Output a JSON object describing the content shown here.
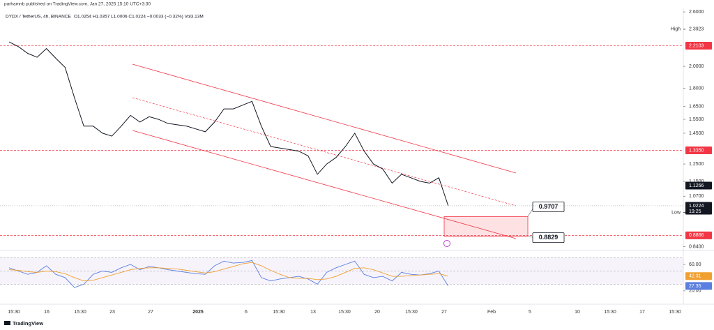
{
  "header": {
    "publisher": "parhamnb published on TradingView.com, Jan 27, 2025 15:10 UTC+3:30",
    "symbol": "DYDX / TetherUS, 4h, BINANCE",
    "ohlc": "O1.0254 H1.0357 L1.0006 C1.0224 −0.0033 (−0.32%) Vol3.13M"
  },
  "chart_data": [
    {
      "type": "line",
      "color": "#131722",
      "log_scale": true,
      "values": [
        2.25,
        2.2,
        2.13,
        2.09,
        2.18,
        2.08,
        1.99,
        1.72,
        1.5,
        1.5,
        1.45,
        1.43,
        1.5,
        1.58,
        1.53,
        1.57,
        1.55,
        1.52,
        1.51,
        1.5,
        1.48,
        1.46,
        1.53,
        1.63,
        1.63,
        1.66,
        1.69,
        1.5,
        1.36,
        1.35,
        1.34,
        1.33,
        1.3,
        1.19,
        1.25,
        1.29,
        1.36,
        1.45,
        1.33,
        1.25,
        1.22,
        1.14,
        1.19,
        1.17,
        1.15,
        1.14,
        1.17,
        1.0224
      ],
      "ylim": [
        0.83,
        2.645
      ],
      "yticks": [
        {
          "value": 2.6,
          "label": "2.6000"
        },
        {
          "value": 2.0,
          "label": "2.0000"
        },
        {
          "value": 1.8,
          "label": "1.8000"
        },
        {
          "value": 1.65,
          "label": "1.6500"
        },
        {
          "value": 1.55,
          "label": "1.5500"
        },
        {
          "value": 1.45,
          "label": "1.4500"
        },
        {
          "value": 1.25,
          "label": "1.2500"
        },
        {
          "value": 1.15,
          "label": "1.1500"
        },
        {
          "value": 1.07,
          "label": "1.0700"
        },
        {
          "value": 0.84,
          "label": "0.8400"
        }
      ],
      "xticks": [
        "15:30",
        "16",
        "15:30",
        "23",
        "27",
        "2025",
        "6",
        "15:30",
        "13",
        "15:30",
        "20",
        "15:30",
        "27",
        "Feb",
        "5",
        "10",
        "15:30",
        "17",
        "15:30"
      ],
      "level_color": "#f23645",
      "levels": [
        {
          "value": 2.2103,
          "label": "2.2103"
        },
        {
          "value": 1.335,
          "label": "1.3350"
        },
        {
          "value": 0.8866,
          "label": "0.8866"
        }
      ],
      "markers": [
        {
          "name": "High",
          "value": 2.3923,
          "label": "2.3923"
        },
        {
          "name": "Low",
          "value": 0.9898,
          "label": "0.9898"
        }
      ],
      "tags": [
        {
          "value": 1.1266,
          "label": "1.1266"
        }
      ],
      "last_price": {
        "value": 1.0224,
        "label": "1.0224",
        "countdown": "19:25"
      },
      "annotations": [
        {
          "value": 0.9707,
          "label": "0.9707"
        },
        {
          "value": 0.8829,
          "label": "0.8829"
        }
      ]
    },
    {
      "type": "line",
      "series": [
        {
          "color": "#5b7fe0",
          "values": [
            55,
            50,
            45,
            48,
            58,
            45,
            40,
            25,
            30,
            45,
            50,
            48,
            55,
            60,
            52,
            57,
            55,
            52,
            50,
            48,
            46,
            45,
            58,
            65,
            62,
            63,
            66,
            40,
            35,
            38,
            40,
            42,
            38,
            30,
            48,
            55,
            60,
            65,
            45,
            40,
            42,
            35,
            48,
            45,
            44,
            46,
            50,
            27.35
          ],
          "last_label": "27.35"
        },
        {
          "color": "#f0a030",
          "values": [
            52,
            51,
            49,
            48,
            50,
            49,
            46,
            40,
            35,
            36,
            40,
            44,
            48,
            52,
            54,
            55,
            55,
            54,
            53,
            51,
            49,
            47,
            49,
            53,
            57,
            61,
            63,
            58,
            51,
            45,
            40,
            39,
            39,
            37,
            38,
            42,
            48,
            54,
            55,
            52,
            47,
            42,
            42,
            43,
            44,
            45,
            46,
            42.31
          ],
          "last_label": "42.31"
        }
      ],
      "ylim": [
        4,
        78
      ],
      "yticks": [
        {
          "value": 60,
          "label": "60.00"
        },
        {
          "value": 20,
          "label": "20.00"
        }
      ],
      "levels": [
        70,
        50,
        30
      ]
    }
  ],
  "footer": "TradingView"
}
